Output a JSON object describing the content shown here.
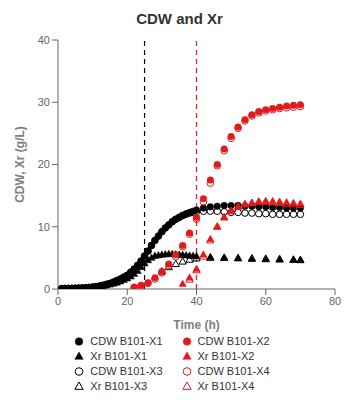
{
  "chart_data": {
    "type": "scatter",
    "title": "CDW and Xr",
    "x_label": "Time (h)",
    "y_label": "CDW, Xr (g/L)",
    "xlim": [
      0,
      80
    ],
    "ylim": [
      0,
      40
    ],
    "xticks": [
      0,
      20,
      40,
      60,
      80
    ],
    "yticks": [
      0,
      10,
      20,
      30,
      40
    ],
    "legend": "bottom",
    "vlines": [
      {
        "x": 25,
        "color": "#000000",
        "line_style": "dashed"
      },
      {
        "x": 40,
        "color": "#e31a1c",
        "line_style": "dashed"
      }
    ],
    "series": [
      {
        "name": "CDW B101-X1",
        "color": "#000000",
        "marker": "circle",
        "x": [
          1,
          2,
          3,
          4,
          5,
          6,
          7,
          8,
          9,
          10,
          11,
          12,
          13,
          14,
          15,
          16,
          17,
          18,
          19,
          20,
          21,
          22,
          23,
          24,
          25,
          26,
          27,
          28,
          29,
          30,
          31,
          32,
          33,
          34,
          35,
          36,
          37,
          38,
          39,
          40,
          42,
          44,
          46,
          48,
          50,
          52,
          54,
          56,
          58,
          60,
          62,
          64,
          66,
          68,
          70
        ],
        "values": [
          0.05,
          0.07,
          0.08,
          0.1,
          0.12,
          0.14,
          0.17,
          0.2,
          0.25,
          0.3,
          0.38,
          0.47,
          0.6,
          0.75,
          0.9,
          1.1,
          1.35,
          1.6,
          1.9,
          2.2,
          2.7,
          3.2,
          3.8,
          4.5,
          5.3,
          6.1,
          7.0,
          7.8,
          8.5,
          9.2,
          9.8,
          10.3,
          10.8,
          11.2,
          11.5,
          11.8,
          12.1,
          12.3,
          12.5,
          12.7,
          13.0,
          13.2,
          13.3,
          13.4,
          13.4,
          13.4,
          13.3,
          13.3,
          13.2,
          13.2,
          13.1,
          13.1,
          13.0,
          13.0,
          13.0
        ]
      },
      {
        "name": "Xr B101-X1",
        "color": "#000000",
        "marker": "triangle",
        "x": [
          1,
          2,
          3,
          4,
          5,
          6,
          7,
          8,
          9,
          10,
          11,
          12,
          13,
          14,
          15,
          16,
          17,
          18,
          19,
          20,
          21,
          22,
          23,
          24,
          25,
          26,
          27,
          28,
          29,
          30,
          31,
          32,
          33,
          34,
          35,
          36,
          37,
          38,
          39,
          40,
          44,
          48,
          52,
          56,
          60,
          64,
          68,
          70
        ],
        "values": [
          0.04,
          0.05,
          0.06,
          0.08,
          0.09,
          0.11,
          0.13,
          0.16,
          0.2,
          0.24,
          0.3,
          0.37,
          0.46,
          0.57,
          0.7,
          0.85,
          1.0,
          1.2,
          1.45,
          1.7,
          2.0,
          2.4,
          2.9,
          3.5,
          4.1,
          4.6,
          5.0,
          5.3,
          5.4,
          5.5,
          5.55,
          5.6,
          5.6,
          5.55,
          5.5,
          5.45,
          5.4,
          5.35,
          5.3,
          5.25,
          5.1,
          5.0,
          4.9,
          4.8,
          4.75,
          4.7,
          4.65,
          4.6
        ]
      },
      {
        "name": "CDW B101-X3",
        "color": "#000000",
        "marker": "circle-open",
        "x": [
          1,
          2,
          3,
          4,
          5,
          6,
          7,
          8,
          9,
          10,
          11,
          12,
          13,
          14,
          15,
          16,
          17,
          18,
          19,
          20,
          21,
          22,
          23,
          24,
          25,
          26,
          27,
          28,
          29,
          30,
          31,
          32,
          33,
          34,
          35,
          36,
          37,
          38,
          39,
          40,
          42,
          44,
          46,
          48,
          50,
          52,
          54,
          56,
          58,
          60,
          62,
          64,
          66,
          68,
          70
        ],
        "values": [
          0.05,
          0.07,
          0.08,
          0.1,
          0.12,
          0.14,
          0.17,
          0.2,
          0.25,
          0.3,
          0.38,
          0.47,
          0.6,
          0.75,
          0.9,
          1.1,
          1.35,
          1.6,
          1.9,
          2.2,
          2.7,
          3.2,
          3.8,
          4.5,
          5.3,
          6.1,
          7.0,
          7.8,
          8.5,
          9.2,
          9.8,
          10.3,
          10.8,
          11.2,
          11.5,
          11.8,
          12.0,
          12.2,
          12.3,
          12.4,
          12.5,
          12.5,
          12.5,
          12.4,
          12.3,
          12.3,
          12.2,
          12.2,
          12.1,
          12.1,
          12.0,
          12.0,
          12.0,
          12.0,
          12.0
        ]
      },
      {
        "name": "Xr B101-X3",
        "color": "#000000",
        "marker": "triangle-open",
        "x": [
          30,
          32,
          34,
          36,
          38,
          40,
          44,
          48,
          52,
          56,
          60,
          64,
          68,
          70
        ],
        "values": [
          2.8,
          3.5,
          4.0,
          4.4,
          4.7,
          4.9,
          5.0,
          5.0,
          4.95,
          4.9,
          4.85,
          4.8,
          4.7,
          4.65
        ]
      },
      {
        "name": "CDW B101-X2",
        "color": "#e31a1c",
        "marker": "circle",
        "x": [
          22,
          24,
          26,
          28,
          30,
          32,
          34,
          36,
          38,
          40,
          42,
          44,
          46,
          48,
          50,
          52,
          54,
          56,
          58,
          60,
          62,
          64,
          66,
          68,
          70
        ],
        "values": [
          0.3,
          0.6,
          1.0,
          1.8,
          2.8,
          4.0,
          5.5,
          7.0,
          9.0,
          11.5,
          14.5,
          17.5,
          20.0,
          22.5,
          24.5,
          26.0,
          27.2,
          28.0,
          28.5,
          28.8,
          29.0,
          29.2,
          29.4,
          29.5,
          29.6
        ]
      },
      {
        "name": "Xr B101-X2",
        "color": "#e31a1c",
        "marker": "triangle",
        "x": [
          36,
          38,
          40,
          42,
          44,
          46,
          48,
          50,
          52,
          54,
          56,
          58,
          60,
          62,
          64,
          66,
          68,
          70
        ],
        "values": [
          0.8,
          1.8,
          3.2,
          5.5,
          8.0,
          10.0,
          11.5,
          12.5,
          13.2,
          13.6,
          13.8,
          14.0,
          14.1,
          14.1,
          14.0,
          13.9,
          13.8,
          13.7
        ]
      },
      {
        "name": "CDW B101-X4",
        "color": "#e31a1c",
        "marker": "circle-open",
        "x": [
          22,
          24,
          26,
          28,
          30,
          32,
          34,
          36,
          38,
          40,
          42,
          44,
          46,
          48,
          50,
          52,
          54,
          56,
          58,
          60,
          62,
          64,
          66,
          68,
          70
        ],
        "values": [
          0.2,
          0.5,
          0.9,
          1.6,
          2.6,
          3.8,
          5.2,
          6.8,
          8.8,
          11.2,
          14.0,
          17.0,
          19.8,
          22.2,
          24.2,
          25.8,
          27.0,
          27.8,
          28.3,
          28.6,
          28.8,
          29.0,
          29.1,
          29.2,
          29.3
        ]
      },
      {
        "name": "Xr B101-X4",
        "color": "#e31a1c",
        "marker": "triangle-open",
        "x": [
          38,
          40,
          42,
          44,
          46,
          48,
          50,
          52,
          54,
          56,
          58,
          60,
          62,
          64,
          66,
          68,
          70
        ],
        "values": [
          1.5,
          3.0,
          5.2,
          7.8,
          10.0,
          11.5,
          12.5,
          13.2,
          13.6,
          13.8,
          14.0,
          14.0,
          13.9,
          13.8,
          13.7,
          13.6,
          13.5
        ]
      }
    ]
  }
}
